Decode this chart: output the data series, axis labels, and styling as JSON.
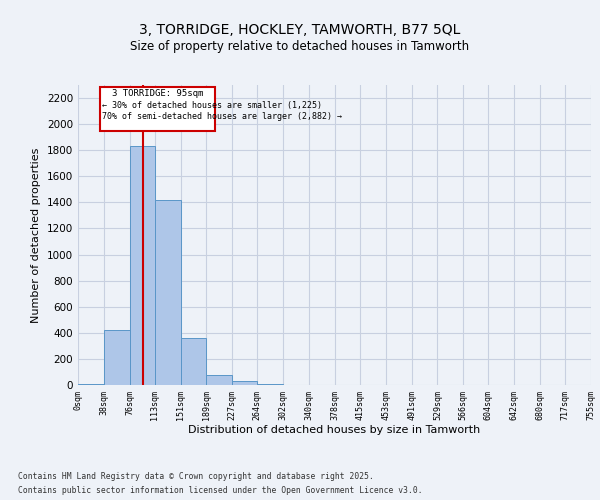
{
  "title_line1": "3, TORRIDGE, HOCKLEY, TAMWORTH, B77 5QL",
  "title_line2": "Size of property relative to detached houses in Tamworth",
  "xlabel": "Distribution of detached houses by size in Tamworth",
  "ylabel": "Number of detached properties",
  "bin_edges": [
    0,
    38,
    76,
    113,
    151,
    189,
    227,
    264,
    302,
    340,
    378,
    415,
    453,
    491,
    529,
    566,
    604,
    642,
    680,
    717,
    755
  ],
  "bar_heights": [
    10,
    425,
    1830,
    1420,
    360,
    80,
    30,
    10,
    0,
    0,
    0,
    0,
    0,
    0,
    0,
    0,
    0,
    0,
    0,
    0
  ],
  "bar_color": "#aec6e8",
  "bar_edge_color": "#5a96c8",
  "property_size": 95,
  "vline_color": "#cc0000",
  "annotation_text_line1": "3 TORRIDGE: 95sqm",
  "annotation_text_line2": "← 30% of detached houses are smaller (1,225)",
  "annotation_text_line3": "70% of semi-detached houses are larger (2,882) →",
  "annotation_box_edgecolor": "#cc0000",
  "ylim": [
    0,
    2300
  ],
  "yticks": [
    0,
    200,
    400,
    600,
    800,
    1000,
    1200,
    1400,
    1600,
    1800,
    2000,
    2200
  ],
  "tick_labels": [
    "0sqm",
    "38sqm",
    "76sqm",
    "113sqm",
    "151sqm",
    "189sqm",
    "227sqm",
    "264sqm",
    "302sqm",
    "340sqm",
    "378sqm",
    "415sqm",
    "453sqm",
    "491sqm",
    "529sqm",
    "566sqm",
    "604sqm",
    "642sqm",
    "680sqm",
    "717sqm",
    "755sqm"
  ],
  "footer_line1": "Contains HM Land Registry data © Crown copyright and database right 2025.",
  "footer_line2": "Contains public sector information licensed under the Open Government Licence v3.0.",
  "bg_color": "#eef2f8",
  "grid_color": "#c8d0e0"
}
